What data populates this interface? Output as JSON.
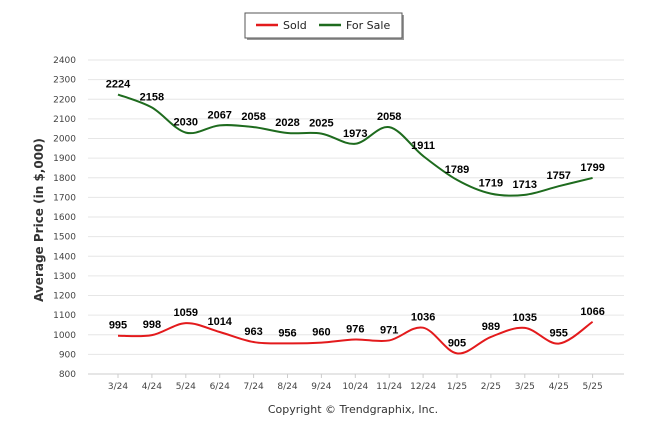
{
  "chart_data": {
    "type": "line",
    "title": "",
    "xlabel": "",
    "ylabel": "Average Price (in $,000)",
    "ylim": [
      800,
      2400
    ],
    "ytick_step": 100,
    "grid": true,
    "legend_position": "top-center",
    "footer": "Copyright © Trendgraphix, Inc.",
    "categories": [
      "3/24",
      "4/24",
      "5/24",
      "6/24",
      "7/24",
      "8/24",
      "9/24",
      "10/24",
      "11/24",
      "12/24",
      "1/25",
      "2/25",
      "3/25",
      "4/25",
      "5/25"
    ],
    "series": [
      {
        "name": "Sold",
        "color": "#e31a1c",
        "values": [
          995,
          998,
          1059,
          1014,
          963,
          956,
          960,
          976,
          971,
          1036,
          905,
          989,
          1035,
          955,
          1066
        ]
      },
      {
        "name": "For Sale",
        "color": "#1e6b1e",
        "values": [
          2224,
          2158,
          2030,
          2067,
          2058,
          2028,
          2025,
          1973,
          2058,
          1911,
          1789,
          1719,
          1713,
          1757,
          1799
        ]
      }
    ]
  }
}
